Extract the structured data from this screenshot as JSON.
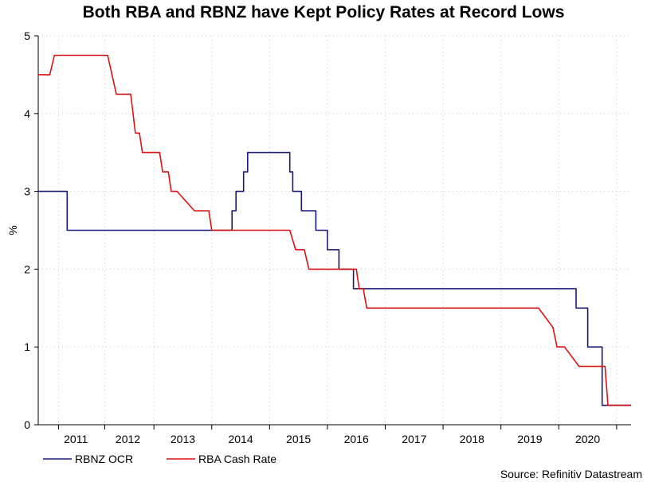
{
  "chart_data": {
    "type": "line",
    "title": "Both RBA and RBNZ have Kept Policy Rates at Record Lows",
    "ylabel": "%",
    "xlabel": "",
    "ylim": [
      0,
      5
    ],
    "yticks": [
      0,
      1,
      2,
      3,
      4,
      5
    ],
    "xlim": [
      2010.2,
      2020.45
    ],
    "x_tick_labels": [
      "2011",
      "2012",
      "2013",
      "2014",
      "2015",
      "2016",
      "2017",
      "2018",
      "2019",
      "2020"
    ],
    "x_label_positions": [
      2010.85,
      2011.75,
      2012.7,
      2013.7,
      2014.7,
      2015.7,
      2016.7,
      2017.7,
      2018.7,
      2019.7
    ],
    "x_minor_ticks": [
      2010.55,
      2011.35,
      2012.2,
      2013.2,
      2014.2,
      2015.2,
      2016.2,
      2017.2,
      2018.2,
      2019.2,
      2020.2
    ],
    "grid": true,
    "legend_position": "bottom-left",
    "source": "Source: Refinitiv Datastream",
    "series": [
      {
        "name": "RBNZ OCR",
        "color": "#1a1a7a",
        "step": true,
        "x": [
          2010.2,
          2010.7,
          2013.0,
          2013.55,
          2013.62,
          2013.75,
          2013.82,
          2014.15,
          2014.2,
          2014.55,
          2014.6,
          2014.67,
          2014.75,
          2015.0,
          2015.2,
          2015.4,
          2015.65,
          2015.9,
          2016.9,
          2018.0,
          2019.5,
          2019.7,
          2019.95,
          2020.45
        ],
        "y": [
          3.0,
          2.5,
          2.5,
          2.75,
          3.0,
          3.25,
          3.5,
          3.5,
          3.5,
          3.25,
          3.0,
          3.0,
          2.75,
          2.5,
          2.25,
          2.0,
          1.75,
          1.75,
          1.75,
          1.75,
          1.5,
          1.0,
          0.25,
          0.25
        ]
      },
      {
        "name": "RBA Cash Rate",
        "color": "#dd1111",
        "step": false,
        "x": [
          2010.2,
          2010.4,
          2010.48,
          2011.4,
          2011.55,
          2011.8,
          2011.88,
          2011.95,
          2012.0,
          2012.1,
          2012.3,
          2012.35,
          2012.45,
          2012.5,
          2012.55,
          2012.6,
          2012.9,
          2012.95,
          2013.15,
          2013.2,
          2013.5,
          2014.55,
          2014.65,
          2014.8,
          2014.88,
          2015.5,
          2015.6,
          2015.7,
          2015.75,
          2015.82,
          2015.88,
          2016.1,
          2018.8,
          2018.85,
          2019.1,
          2019.17,
          2019.3,
          2019.55,
          2019.6,
          2019.65,
          2020.0,
          2020.05,
          2020.2,
          2020.45
        ],
        "y": [
          4.5,
          4.5,
          4.75,
          4.75,
          4.25,
          4.25,
          3.75,
          3.75,
          3.5,
          3.5,
          3.5,
          3.25,
          3.25,
          3.0,
          3.0,
          3.0,
          2.75,
          2.75,
          2.75,
          2.5,
          2.5,
          2.5,
          2.25,
          2.25,
          2.0,
          2.0,
          2.0,
          2.0,
          1.75,
          1.75,
          1.5,
          1.5,
          1.5,
          1.5,
          1.25,
          1.0,
          1.0,
          0.75,
          0.75,
          0.75,
          0.75,
          0.25,
          0.25,
          0.25
        ]
      }
    ]
  }
}
